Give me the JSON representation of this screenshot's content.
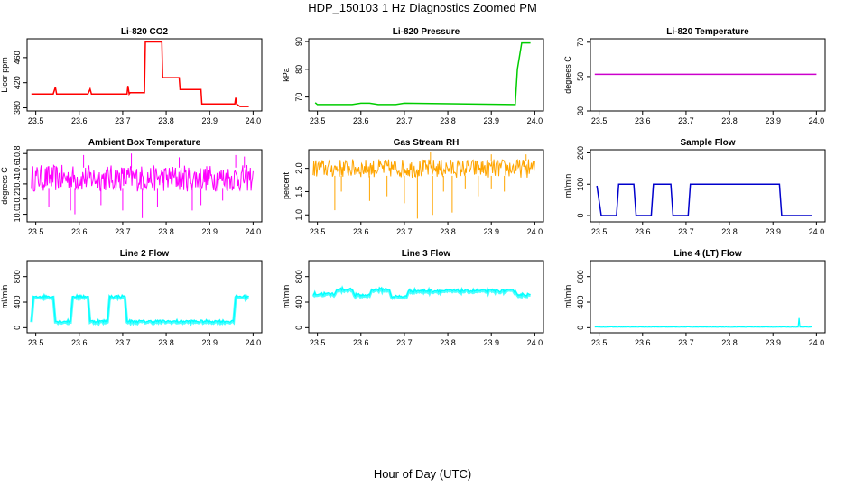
{
  "title": "HDP_150103  1 Hz Diagnostics Zoomed PM",
  "xlabel": "Hour of Day (UTC)",
  "chart_data": [
    {
      "type": "line",
      "title": "Li-820 CO2",
      "ylabel": "Licor ppm",
      "color": "#ff0000",
      "xlim": [
        23.5,
        24.0
      ],
      "ylim": [
        375,
        490
      ],
      "xticks": [
        "23.5",
        "23.6",
        "23.7",
        "23.8",
        "23.9",
        "24.0"
      ],
      "yticks": [
        "380",
        "420",
        "460"
      ],
      "x": [
        23.49,
        23.54,
        23.545,
        23.548,
        23.55,
        23.62,
        23.625,
        23.628,
        23.63,
        23.71,
        23.712,
        23.715,
        23.717,
        23.75,
        23.752,
        23.79,
        23.792,
        23.83,
        23.832,
        23.88,
        23.882,
        23.958,
        23.96,
        23.962,
        23.97,
        23.99
      ],
      "y": [
        402,
        402,
        413,
        402,
        402,
        402,
        410,
        402,
        402,
        402,
        415,
        402,
        404,
        404,
        485,
        485,
        428,
        428,
        409,
        409,
        386,
        386,
        396,
        386,
        382,
        382
      ]
    },
    {
      "type": "line",
      "title": "Li-820 Pressure",
      "ylabel": "kPa",
      "color": "#00cc00",
      "xlim": [
        23.5,
        24.0
      ],
      "ylim": [
        65,
        91
      ],
      "xticks": [
        "23.5",
        "23.6",
        "23.7",
        "23.8",
        "23.9",
        "24.0"
      ],
      "yticks": [
        "70",
        "80",
        "90"
      ],
      "x": [
        23.495,
        23.5,
        23.58,
        23.6,
        23.62,
        23.64,
        23.68,
        23.7,
        23.95,
        23.955,
        23.96,
        23.97,
        23.99
      ],
      "y": [
        68,
        67.3,
        67.3,
        67.8,
        67.8,
        67.3,
        67.3,
        67.8,
        67.3,
        67.3,
        80,
        89.5,
        89.5
      ]
    },
    {
      "type": "line",
      "title": "Li-820 Temperature",
      "ylabel": "degrees C",
      "color": "#cc00cc",
      "xlim": [
        23.5,
        24.0
      ],
      "ylim": [
        30,
        72
      ],
      "xticks": [
        "23.5",
        "23.6",
        "23.7",
        "23.8",
        "23.9",
        "24.0"
      ],
      "yticks": [
        "30",
        "50",
        "70"
      ],
      "x": [
        23.49,
        24.0
      ],
      "y": [
        51.3,
        51.3
      ]
    },
    {
      "type": "line",
      "title": "Ambient Box Temperature",
      "ylabel": "degrees C",
      "color": "#ff00ff",
      "xlim": [
        23.5,
        24.0
      ],
      "ylim": [
        9.9,
        10.85
      ],
      "xticks": [
        "23.5",
        "23.6",
        "23.7",
        "23.8",
        "23.9",
        "24.0"
      ],
      "yticks": [
        "10.0",
        "10.2",
        "10.4",
        "10.6",
        "10.8"
      ],
      "x": [
        23.49,
        24.0
      ],
      "y_range": [
        10.3,
        10.65
      ],
      "spikes_low": [
        23.53,
        23.58,
        23.59,
        23.65,
        23.7,
        23.745,
        23.78,
        23.86,
        23.88,
        23.93
      ],
      "spike_low_values": [
        10.1,
        10.05,
        10.0,
        10.12,
        10.05,
        9.95,
        10.1,
        10.05,
        10.12,
        10.18
      ],
      "spikes_high": [
        23.61,
        23.72,
        23.83,
        23.96,
        23.98
      ],
      "spike_high_values": [
        10.78,
        10.8,
        10.75,
        10.78,
        10.76
      ]
    },
    {
      "type": "line",
      "title": "Gas Stream RH",
      "ylabel": "percent",
      "color": "#ffa500",
      "xlim": [
        23.5,
        24.0
      ],
      "ylim": [
        0.85,
        2.4
      ],
      "xticks": [
        "23.5",
        "23.6",
        "23.7",
        "23.8",
        "23.9",
        "24.0"
      ],
      "yticks": [
        "1.0",
        "1.5",
        "2.0"
      ],
      "x": [
        23.49,
        24.0
      ],
      "y_range": [
        1.8,
        2.2
      ],
      "spikes_low": [
        23.54,
        23.555,
        23.62,
        23.66,
        23.7,
        23.73,
        23.765,
        23.79,
        23.81,
        23.84,
        23.87,
        23.9,
        23.93
      ],
      "spike_low_values": [
        1.1,
        1.5,
        1.3,
        1.4,
        1.25,
        0.92,
        1.0,
        1.5,
        1.05,
        1.55,
        1.4,
        1.55,
        1.5
      ],
      "spikes_high": [
        23.76,
        23.9,
        23.98
      ],
      "spike_high_values": [
        2.35,
        2.3,
        2.3
      ]
    },
    {
      "type": "line",
      "title": "Sample Flow",
      "ylabel": "ml/min",
      "color": "#0000cc",
      "xlim": [
        23.5,
        24.0
      ],
      "ylim": [
        -20,
        210
      ],
      "xticks": [
        "23.5",
        "23.6",
        "23.7",
        "23.8",
        "23.9",
        "24.0"
      ],
      "yticks": [
        "0",
        "100",
        "200"
      ],
      "x": [
        23.495,
        23.505,
        23.54,
        23.545,
        23.58,
        23.585,
        23.62,
        23.625,
        23.665,
        23.67,
        23.705,
        23.71,
        23.915,
        23.92,
        23.99
      ],
      "y": [
        95,
        0,
        0,
        100,
        100,
        0,
        0,
        100,
        100,
        0,
        0,
        100,
        100,
        0,
        0
      ]
    },
    {
      "type": "line",
      "title": "Line 2 Flow",
      "ylabel": "ml/min",
      "color": "#00ffff",
      "xlim": [
        23.5,
        24.0
      ],
      "ylim": [
        -80,
        1050
      ],
      "xticks": [
        "23.5",
        "23.6",
        "23.7",
        "23.8",
        "23.9",
        "24.0"
      ],
      "yticks": [
        "0",
        "400",
        "800"
      ],
      "x": [
        23.49,
        23.495,
        23.54,
        23.545,
        23.58,
        23.585,
        23.62,
        23.625,
        23.665,
        23.67,
        23.705,
        23.71,
        23.955,
        23.96,
        23.99
      ],
      "y": [
        100,
        490,
        490,
        100,
        100,
        490,
        490,
        100,
        100,
        490,
        490,
        100,
        100,
        490,
        490
      ],
      "noise": 40
    },
    {
      "type": "line",
      "title": "Line 3 Flow",
      "ylabel": "ml/min",
      "color": "#00ffff",
      "xlim": [
        23.5,
        24.0
      ],
      "ylim": [
        -80,
        1050
      ],
      "xticks": [
        "23.5",
        "23.6",
        "23.7",
        "23.8",
        "23.9",
        "24.0"
      ],
      "yticks": [
        "0",
        "400",
        "800"
      ],
      "x": [
        23.49,
        23.54,
        23.545,
        23.58,
        23.585,
        23.62,
        23.625,
        23.665,
        23.67,
        23.705,
        23.71,
        23.955,
        23.96,
        23.99
      ],
      "y": [
        530,
        530,
        600,
        600,
        510,
        510,
        600,
        600,
        490,
        490,
        580,
        580,
        520,
        520
      ],
      "noise": 45
    },
    {
      "type": "line",
      "title": "Line 4 (LT) Flow",
      "ylabel": "ml/min",
      "color": "#00ffff",
      "xlim": [
        23.5,
        24.0
      ],
      "ylim": [
        -80,
        1050
      ],
      "xticks": [
        "23.5",
        "23.6",
        "23.7",
        "23.8",
        "23.9",
        "24.0"
      ],
      "yticks": [
        "0",
        "400",
        "800"
      ],
      "x": [
        23.49,
        23.958,
        23.96,
        23.962,
        23.99
      ],
      "y": [
        10,
        10,
        150,
        10,
        10
      ],
      "noise": 6
    }
  ]
}
